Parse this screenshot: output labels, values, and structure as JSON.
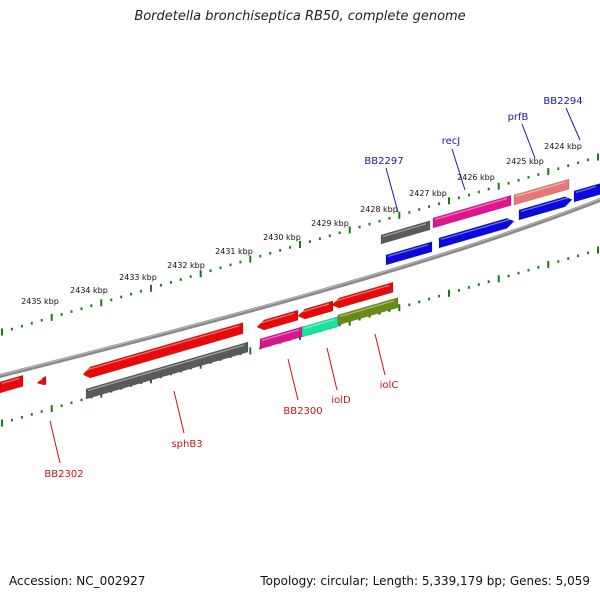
{
  "title": "Bordetella bronchiseptica RB50, complete genome",
  "footer": {
    "accession": "Accession: NC_002927",
    "topology": "Topology: circular; Length: 5,339,179 bp; Genes: 5,059"
  },
  "colors": {
    "tick": "#1a7a1a",
    "backbone": "#8a8a8a",
    "forward_label": "#1a1aa8",
    "reverse_label": "#c81414"
  },
  "scale_labels": [
    "2424 kbp",
    "2425 kbp",
    "2426 kbp",
    "2427 kbp",
    "2428 kbp",
    "2429 kbp",
    "2430 kbp",
    "2431 kbp",
    "2432 kbp",
    "2433 kbp",
    "2434 kbp",
    "2435 kbp"
  ],
  "gene_labels": [
    {
      "name": "BB2294",
      "strand": "forward"
    },
    {
      "name": "prfB",
      "strand": "forward"
    },
    {
      "name": "recJ",
      "strand": "forward"
    },
    {
      "name": "BB2297",
      "strand": "forward"
    },
    {
      "name": "BB2300",
      "strand": "reverse"
    },
    {
      "name": "iolD",
      "strand": "reverse"
    },
    {
      "name": "iolC",
      "strand": "reverse"
    },
    {
      "name": "sphB3",
      "strand": "reverse"
    },
    {
      "name": "BB2302",
      "strand": "reverse"
    }
  ],
  "features": [
    {
      "name": "forward-gene-blue-1",
      "color": "#0a0adc"
    },
    {
      "name": "forward-gene-blue-2",
      "color": "#0a0adc"
    },
    {
      "name": "forward-gene-blue-3",
      "color": "#0a0adc"
    },
    {
      "name": "forward-gene-magenta",
      "color": "#e0148c"
    },
    {
      "name": "forward-gene-salmon",
      "color": "#e87878"
    },
    {
      "name": "forward-gene-gray",
      "color": "#5a5a5a"
    },
    {
      "name": "reverse-gene-red-1",
      "color": "#e60a0a"
    },
    {
      "name": "reverse-gene-red-2",
      "color": "#e60a0a"
    },
    {
      "name": "reverse-gene-red-3",
      "color": "#e60a0a"
    },
    {
      "name": "reverse-gene-red-4",
      "color": "#e60a0a"
    },
    {
      "name": "reverse-gene-red-5",
      "color": "#e60a0a"
    },
    {
      "name": "reverse-gene-red-6",
      "color": "#e60a0a"
    },
    {
      "name": "gene-gray-long",
      "color": "#5a5a5a"
    },
    {
      "name": "gene-magenta-2",
      "color": "#d81490"
    },
    {
      "name": "gene-green",
      "color": "#14e6a0"
    },
    {
      "name": "gene-olive",
      "color": "#6a8a14"
    }
  ]
}
